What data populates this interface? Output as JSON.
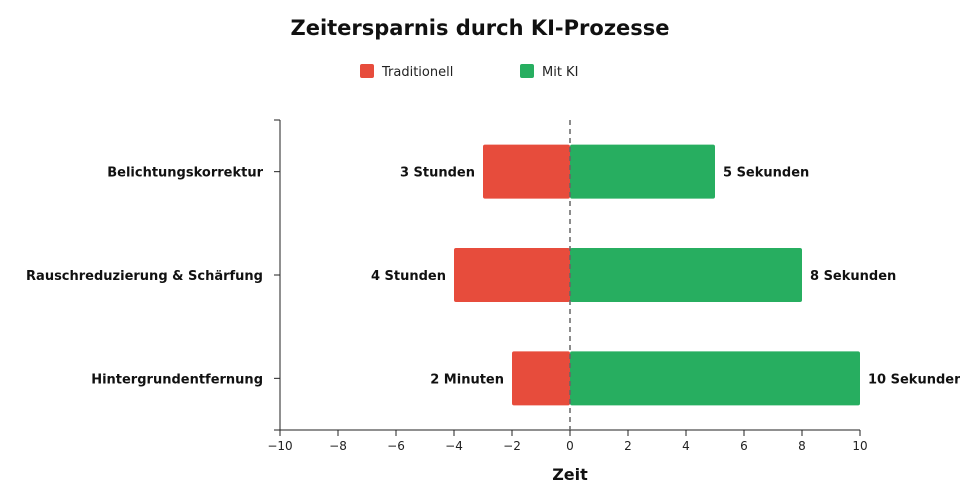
{
  "chart_data": {
    "type": "bar",
    "orientation": "horizontal",
    "title": "Zeitersparnis durch KI-Prozesse",
    "xlabel": "Zeit",
    "ylabel": "",
    "xlim": [
      -10,
      10
    ],
    "x_ticks": [
      -10,
      -8,
      -6,
      -4,
      -2,
      0,
      2,
      4,
      6,
      8,
      10
    ],
    "x_tick_labels": [
      "−10",
      "−8",
      "−6",
      "−4",
      "−2",
      "0",
      "2",
      "4",
      "6",
      "8",
      "10"
    ],
    "grid": false,
    "zero_line": "dashed",
    "legend_position": "top-center",
    "categories": [
      "Belichtungskorrektur",
      "Rauschreduzierung & Schärfung",
      "Hintergrundentfernung"
    ],
    "series": [
      {
        "name": "Traditionell",
        "color": "#e74c3c",
        "values": [
          -3,
          -4,
          -2
        ],
        "labels": [
          "3 Stunden",
          "4 Stunden",
          "2 Minuten"
        ]
      },
      {
        "name": "Mit KI",
        "color": "#27ae60",
        "values": [
          5,
          8,
          10
        ],
        "labels": [
          "5 Sekunden",
          "8 Sekunden",
          "10 Sekunden"
        ]
      }
    ]
  }
}
